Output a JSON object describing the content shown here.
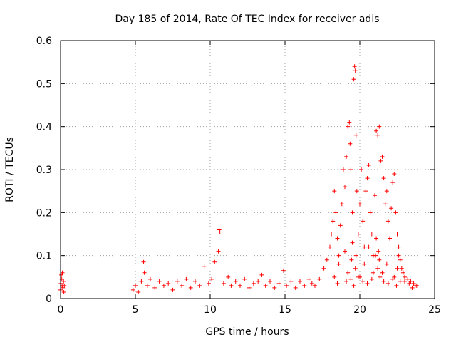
{
  "chart_data": {
    "type": "scatter",
    "title": "Day 185 of 2014, Rate Of TEC Index for receiver adis",
    "xlabel": "GPS time / hours",
    "ylabel": "ROTI / TECUs",
    "xlim": [
      0,
      25
    ],
    "ylim": [
      0,
      0.6
    ],
    "xticks": [
      0,
      5,
      10,
      15,
      20,
      25
    ],
    "xtick_labels": [
      "0",
      "5",
      "10",
      "15",
      "20",
      "25"
    ],
    "yticks": [
      0,
      0.1,
      0.2,
      0.3,
      0.4,
      0.5,
      0.6
    ],
    "ytick_labels": [
      "0",
      "0.1",
      "0.2",
      "0.3",
      "0.4",
      "0.5",
      "0.6"
    ],
    "grid": true,
    "marker": "+",
    "marker_color": "#ff0000",
    "series": [
      {
        "name": "ROTI",
        "x": [
          0.0,
          0.02,
          0.05,
          0.08,
          0.1,
          0.12,
          0.15,
          0.2,
          0.22,
          0.25,
          4.85,
          5.0,
          5.2,
          5.4,
          5.55,
          5.6,
          5.8,
          6.0,
          6.3,
          6.6,
          6.9,
          7.2,
          7.5,
          7.8,
          8.1,
          8.4,
          8.7,
          9.0,
          9.3,
          9.6,
          9.9,
          10.1,
          10.3,
          10.55,
          10.6,
          10.65,
          10.9,
          11.2,
          11.4,
          11.7,
          12.0,
          12.3,
          12.6,
          12.9,
          13.2,
          13.45,
          13.7,
          14.0,
          14.3,
          14.6,
          14.9,
          15.1,
          15.4,
          15.7,
          16.0,
          16.3,
          16.6,
          16.8,
          17.0,
          17.3,
          17.6,
          17.8,
          18.0,
          18.1,
          18.2,
          18.3,
          18.4,
          18.5,
          18.6,
          18.7,
          18.8,
          18.9,
          19.0,
          19.1,
          19.2,
          19.3,
          19.35,
          19.4,
          19.5,
          19.6,
          19.65,
          19.7,
          19.75,
          19.8,
          19.9,
          20.0,
          20.1,
          20.2,
          20.3,
          20.4,
          20.5,
          20.6,
          20.7,
          20.8,
          20.9,
          21.0,
          21.1,
          21.2,
          21.3,
          21.4,
          21.5,
          21.6,
          21.7,
          21.8,
          21.9,
          22.0,
          22.1,
          22.2,
          22.3,
          22.4,
          22.5,
          22.6,
          22.7,
          22.8,
          22.9,
          23.0,
          23.2,
          23.4,
          23.6,
          23.8,
          18.3,
          18.6,
          19.0,
          19.2,
          19.45,
          19.5,
          19.7,
          19.75,
          20.0,
          20.3,
          20.6,
          20.9,
          21.05,
          21.1,
          21.2,
          21.25,
          21.3,
          21.5,
          21.8,
          22.3,
          22.5,
          22.6,
          23.0,
          18.5,
          19.1,
          19.4,
          19.6,
          19.9,
          20.2,
          20.5,
          20.8,
          21.35,
          21.6,
          21.9,
          22.2,
          22.45,
          22.7,
          23.3,
          23.5,
          23.7
        ],
        "y": [
          0.02,
          0.035,
          0.055,
          0.045,
          0.03,
          0.06,
          0.025,
          0.04,
          0.015,
          0.03,
          0.02,
          0.03,
          0.015,
          0.04,
          0.085,
          0.06,
          0.03,
          0.045,
          0.025,
          0.04,
          0.03,
          0.035,
          0.02,
          0.04,
          0.03,
          0.045,
          0.025,
          0.04,
          0.03,
          0.075,
          0.035,
          0.045,
          0.085,
          0.11,
          0.16,
          0.155,
          0.035,
          0.05,
          0.03,
          0.04,
          0.03,
          0.045,
          0.025,
          0.035,
          0.04,
          0.055,
          0.03,
          0.04,
          0.025,
          0.035,
          0.065,
          0.03,
          0.04,
          0.025,
          0.04,
          0.03,
          0.045,
          0.035,
          0.03,
          0.045,
          0.07,
          0.09,
          0.12,
          0.15,
          0.18,
          0.25,
          0.2,
          0.14,
          0.1,
          0.17,
          0.22,
          0.3,
          0.26,
          0.33,
          0.4,
          0.41,
          0.36,
          0.3,
          0.2,
          0.51,
          0.54,
          0.53,
          0.38,
          0.25,
          0.15,
          0.22,
          0.3,
          0.18,
          0.12,
          0.25,
          0.28,
          0.31,
          0.2,
          0.15,
          0.1,
          0.24,
          0.39,
          0.38,
          0.4,
          0.32,
          0.33,
          0.28,
          0.22,
          0.25,
          0.18,
          0.14,
          0.21,
          0.27,
          0.29,
          0.2,
          0.15,
          0.12,
          0.09,
          0.07,
          0.06,
          0.05,
          0.045,
          0.04,
          0.035,
          0.03,
          0.05,
          0.08,
          0.11,
          0.06,
          0.09,
          0.13,
          0.07,
          0.1,
          0.05,
          0.08,
          0.12,
          0.06,
          0.1,
          0.14,
          0.07,
          0.11,
          0.09,
          0.06,
          0.08,
          0.05,
          0.07,
          0.1,
          0.04,
          0.035,
          0.04,
          0.045,
          0.03,
          0.05,
          0.04,
          0.035,
          0.045,
          0.05,
          0.04,
          0.035,
          0.045,
          0.03,
          0.04,
          0.035,
          0.025,
          0.03
        ]
      }
    ]
  }
}
